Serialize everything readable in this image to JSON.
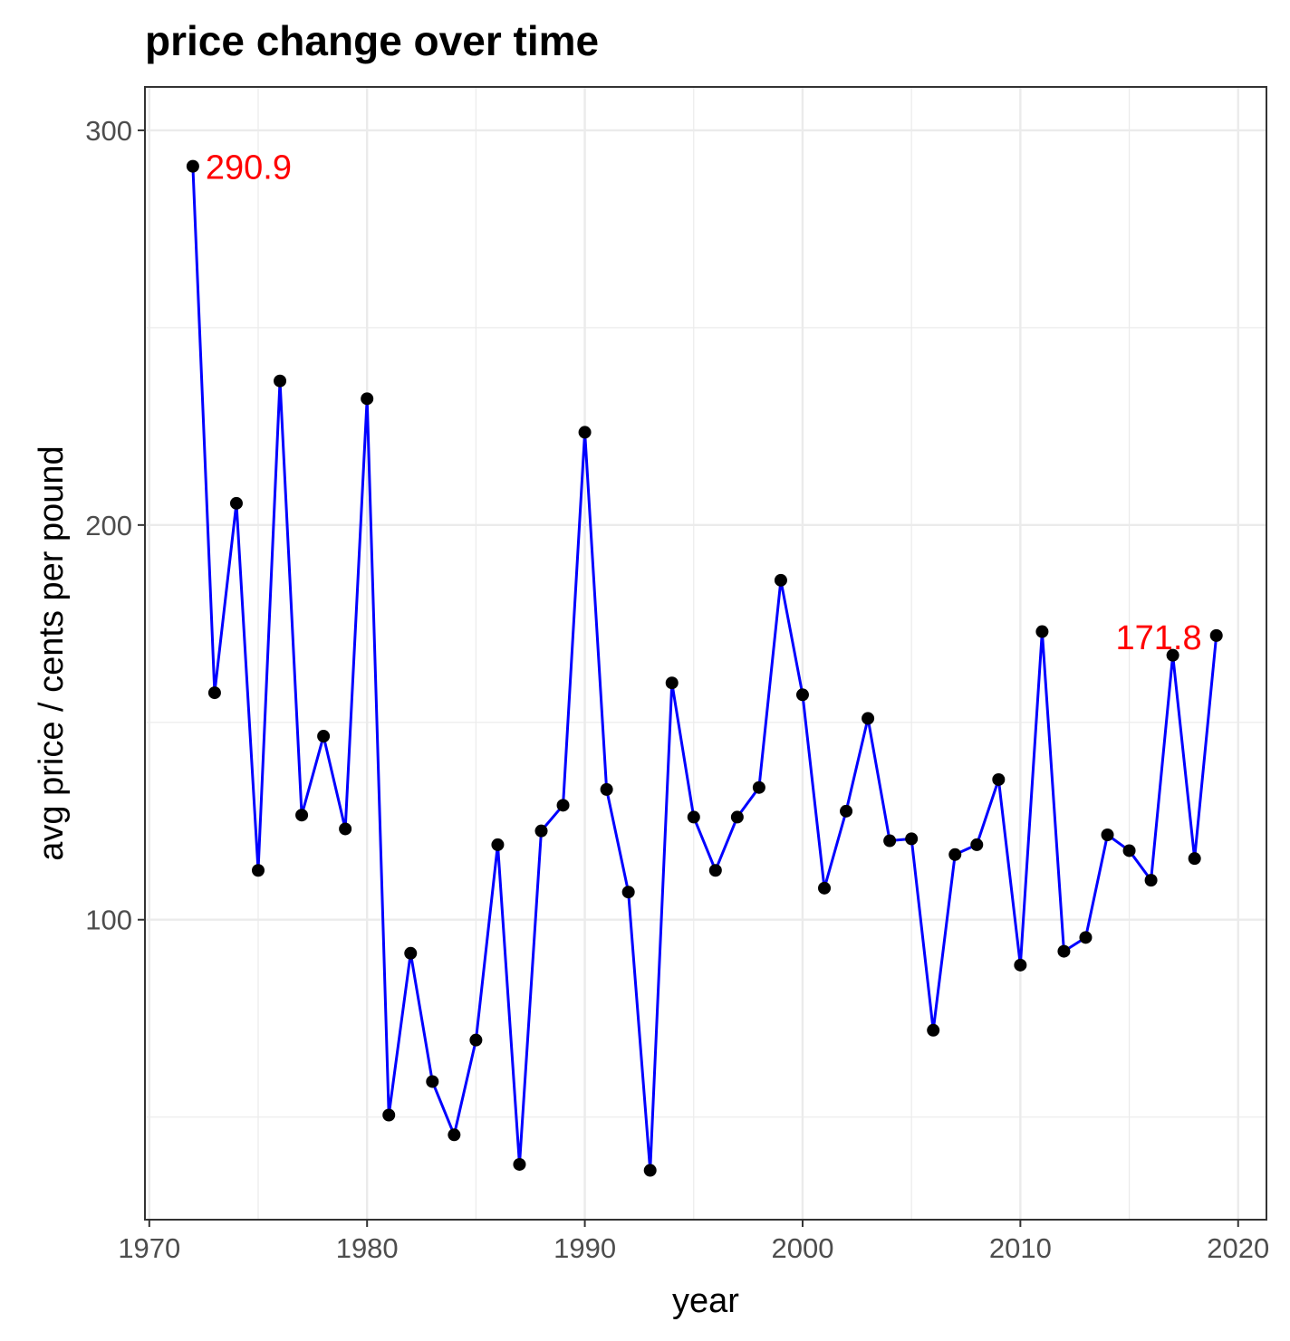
{
  "chart_data": {
    "type": "line",
    "title": "price change over time",
    "xlabel": "year",
    "ylabel": "avg price / cents per pound",
    "xlim": [
      1969.8,
      2021.3
    ],
    "ylim": [
      24,
      311
    ],
    "x_ticks": [
      1970,
      1980,
      1990,
      2000,
      2010,
      2020
    ],
    "x_tick_labels": [
      "1970",
      "1980",
      "1990",
      "2000",
      "2010",
      "2020"
    ],
    "y_ticks": [
      100,
      200,
      300
    ],
    "y_tick_labels": [
      "100",
      "200",
      "300"
    ],
    "y_minor_ticks": [
      50,
      150,
      250
    ],
    "grid": true,
    "line_color": "#0000ff",
    "point_color": "#000000",
    "annotation_color": "#ff0000",
    "series": [
      {
        "x": [
          1972,
          1973,
          1974,
          1975,
          1976,
          1977,
          1978,
          1979,
          1980,
          1981,
          1982,
          1983,
          1984,
          1985,
          1986,
          1987,
          1988,
          1989,
          1990,
          1991,
          1992,
          1993,
          1994,
          1995,
          1996,
          1997,
          1998,
          1999,
          2000,
          2001,
          2002,
          2003,
          2004,
          2005,
          2006,
          2007,
          2008,
          2009,
          2010,
          2011,
          2012,
          2013,
          2014,
          2015,
          2016,
          2017,
          2018,
          2019
        ],
        "values": [
          290.9,
          157.5,
          205.5,
          112.5,
          236.5,
          126.5,
          146.5,
          123,
          232,
          50.5,
          91.5,
          59,
          45.5,
          69.5,
          119,
          38,
          122.5,
          129,
          223.5,
          133,
          107,
          36.5,
          160,
          126,
          112.5,
          126,
          133.5,
          186,
          157,
          108,
          127.5,
          151,
          120,
          120.5,
          72,
          116.5,
          119,
          135.5,
          88.5,
          173,
          92,
          95.5,
          121.5,
          117.5,
          110,
          167,
          115.5,
          172
        ]
      }
    ],
    "annotations": [
      {
        "x": 1972,
        "y": 290.9,
        "text": "290.9"
      },
      {
        "x": 2017,
        "y": 171.8,
        "text": "171.8"
      }
    ]
  }
}
